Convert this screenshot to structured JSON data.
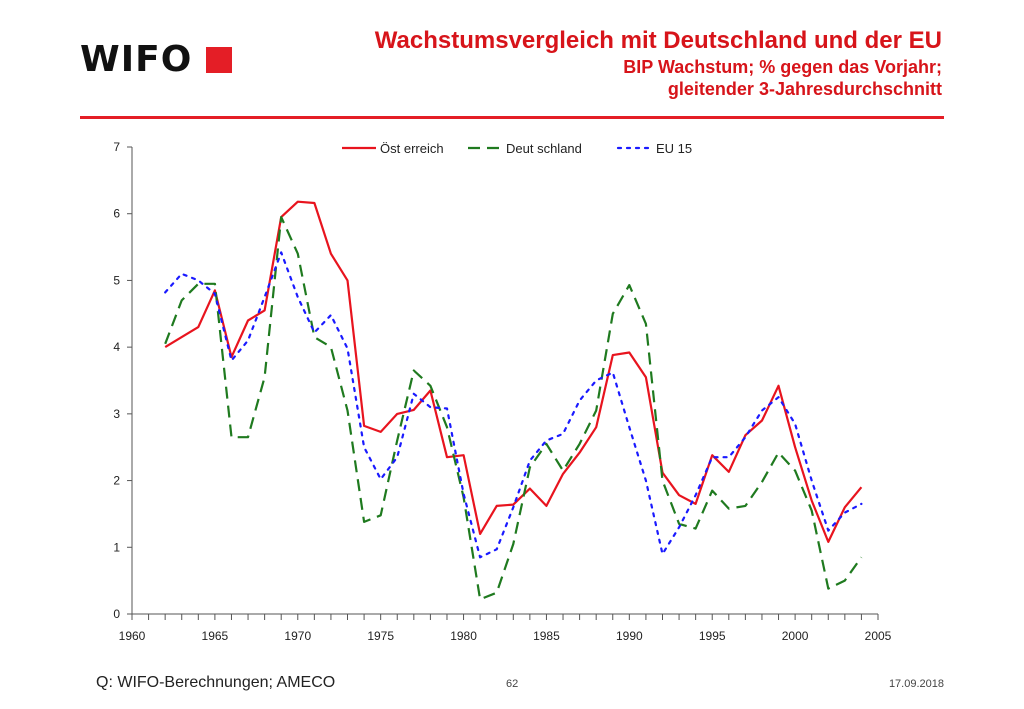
{
  "header": {
    "logo_text": "WIFO",
    "title": "Wachstumsvergleich mit Deutschland und der EU",
    "subtitle_line1": "BIP Wachstum; % gegen das Vorjahr;",
    "subtitle_line2": "gleitender 3-Jahresdurchschnitt"
  },
  "footer": {
    "source": "Q: WIFO-Berechnungen; AMECO",
    "page_number": "62",
    "date": "17.09.2018"
  },
  "colors": {
    "brand_red": "#e41e26",
    "oesterreich": "#e8141e",
    "deutschland": "#1f7a1f",
    "eu15": "#1a1aff"
  },
  "chart_data": {
    "type": "line",
    "title": "",
    "xlabel": "",
    "ylabel": "",
    "xlim": [
      1960,
      2005
    ],
    "ylim": [
      0,
      7
    ],
    "x_ticks": [
      1960,
      1965,
      1970,
      1975,
      1980,
      1985,
      1990,
      1995,
      2000,
      2005
    ],
    "y_ticks": [
      0,
      1,
      2,
      3,
      4,
      5,
      6,
      7
    ],
    "grid": false,
    "legend_position": "top",
    "x": [
      1962,
      1963,
      1964,
      1965,
      1966,
      1967,
      1968,
      1969,
      1970,
      1971,
      1972,
      1973,
      1974,
      1975,
      1976,
      1977,
      1978,
      1979,
      1980,
      1981,
      1982,
      1983,
      1984,
      1985,
      1986,
      1987,
      1988,
      1989,
      1990,
      1991,
      1992,
      1993,
      1994,
      1995,
      1996,
      1997,
      1998,
      1999,
      2000,
      2001,
      2002,
      2003,
      2004
    ],
    "series": [
      {
        "name": "Öst erreich",
        "style": "solid",
        "values": [
          4.0,
          4.15,
          4.3,
          4.85,
          3.85,
          4.4,
          4.55,
          5.95,
          6.18,
          6.16,
          5.4,
          5.0,
          2.82,
          2.73,
          3.0,
          3.06,
          3.35,
          2.35,
          2.38,
          1.2,
          1.62,
          1.64,
          1.88,
          1.62,
          2.1,
          2.42,
          2.8,
          3.88,
          3.92,
          3.55,
          2.12,
          1.78,
          1.65,
          2.38,
          2.13,
          2.68,
          2.9,
          3.42,
          2.5,
          1.7,
          1.08,
          1.6,
          1.9
        ]
      },
      {
        "name": "Deut schland",
        "style": "dashed",
        "values": [
          4.05,
          4.7,
          4.95,
          4.95,
          2.65,
          2.65,
          3.55,
          5.95,
          5.4,
          4.15,
          4.0,
          3.05,
          1.38,
          1.48,
          2.6,
          3.65,
          3.42,
          2.8,
          1.75,
          0.22,
          0.32,
          1.05,
          2.2,
          2.55,
          2.15,
          2.55,
          3.05,
          4.5,
          4.93,
          4.35,
          2.0,
          1.35,
          1.28,
          1.85,
          1.58,
          1.62,
          1.98,
          2.42,
          2.15,
          1.55,
          0.38,
          0.5,
          0.85
        ]
      },
      {
        "name": "EU 15",
        "style": "dotted",
        "values": [
          4.82,
          5.1,
          5.0,
          4.8,
          3.8,
          4.1,
          4.75,
          5.42,
          4.75,
          4.22,
          4.48,
          3.98,
          2.5,
          2.02,
          2.35,
          3.3,
          3.1,
          3.08,
          1.8,
          0.85,
          0.97,
          1.6,
          2.3,
          2.6,
          2.7,
          3.2,
          3.5,
          3.62,
          2.8,
          2.0,
          0.9,
          1.3,
          1.78,
          2.35,
          2.35,
          2.65,
          3.05,
          3.25,
          2.85,
          2.0,
          1.25,
          1.52,
          1.65
        ]
      }
    ]
  }
}
